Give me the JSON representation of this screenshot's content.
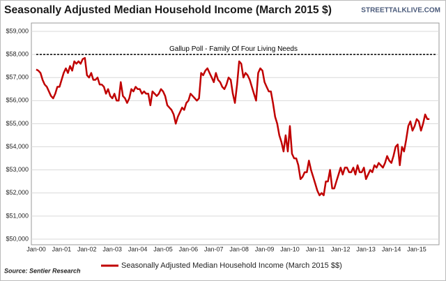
{
  "chart_data": {
    "type": "line",
    "title": "Seasonally Adjusted Median Household Income (March 2015 $)",
    "watermark": "STREETTALKLIVE.COM",
    "source": "Source: Sentier Research",
    "reference_line": {
      "value": 58000,
      "label": "Gallup Poll - Family Of Four Living Needs",
      "color": "#000000"
    },
    "categories": [
      "Jan-00",
      null,
      null,
      null,
      null,
      null,
      null,
      null,
      null,
      null,
      null,
      null,
      "Jan-01",
      null,
      null,
      null,
      null,
      null,
      null,
      null,
      null,
      null,
      null,
      null,
      "Jan-02",
      null,
      null,
      null,
      null,
      null,
      null,
      null,
      null,
      null,
      null,
      null,
      "Jan-03",
      null,
      null,
      null,
      null,
      null,
      null,
      null,
      null,
      null,
      null,
      null,
      "Jan-04",
      null,
      null,
      null,
      null,
      null,
      null,
      null,
      null,
      null,
      null,
      null,
      "Jan-05",
      null,
      null,
      null,
      null,
      null,
      null,
      null,
      null,
      null,
      null,
      null,
      "Jan-06",
      null,
      null,
      null,
      null,
      null,
      null,
      null,
      null,
      null,
      null,
      null,
      "Jan-07",
      null,
      null,
      null,
      null,
      null,
      null,
      null,
      null,
      null,
      null,
      null,
      "Jan-08",
      null,
      null,
      null,
      null,
      null,
      null,
      null,
      null,
      null,
      null,
      null,
      "Jan-09",
      null,
      null,
      null,
      null,
      null,
      null,
      null,
      null,
      null,
      null,
      null,
      "Jan-10",
      null,
      null,
      null,
      null,
      null,
      null,
      null,
      null,
      null,
      null,
      null,
      "Jan-11",
      null,
      null,
      null,
      null,
      null,
      null,
      null,
      null,
      null,
      null,
      null,
      "Jan-12",
      null,
      null,
      null,
      null,
      null,
      null,
      null,
      null,
      null,
      null,
      null,
      "Jan-13",
      null,
      null,
      null,
      null,
      null,
      null,
      null,
      null,
      null,
      null,
      null,
      "Jan-14",
      null,
      null,
      null,
      null,
      null,
      null,
      null,
      null,
      null,
      null,
      null,
      "Jan-15",
      null,
      null,
      null,
      null,
      null,
      null
    ],
    "series": [
      {
        "name": "Seasonally Adjusted Median Household Income (March 2015 $$)",
        "color": "#c00000",
        "values": [
          57350,
          57300,
          57200,
          56900,
          56700,
          56600,
          56400,
          56200,
          56100,
          56300,
          56600,
          56600,
          56900,
          57200,
          57400,
          57200,
          57500,
          57300,
          57700,
          57600,
          57700,
          57600,
          57800,
          57850,
          57100,
          57000,
          57200,
          56900,
          56900,
          57000,
          56700,
          56700,
          56600,
          56300,
          56500,
          56200,
          56100,
          56300,
          56000,
          56000,
          56800,
          56200,
          56100,
          55900,
          56100,
          56500,
          56400,
          56600,
          56500,
          56500,
          56300,
          56400,
          56300,
          56300,
          55800,
          56400,
          56300,
          56200,
          56300,
          56500,
          56400,
          56200,
          55800,
          55700,
          55600,
          55400,
          55000,
          55300,
          55500,
          55700,
          55600,
          55900,
          56000,
          56300,
          56200,
          56100,
          56000,
          56100,
          57200,
          57100,
          57300,
          57400,
          57200,
          57000,
          56800,
          57200,
          56900,
          56800,
          56600,
          56500,
          56700,
          57000,
          56900,
          56300,
          55900,
          56700,
          57700,
          57600,
          57000,
          57200,
          57100,
          56900,
          56600,
          56300,
          56000,
          57200,
          57400,
          57300,
          56800,
          56600,
          56400,
          56400,
          55900,
          55300,
          55000,
          54500,
          54200,
          53800,
          54500,
          53800,
          54900,
          53700,
          53500,
          53500,
          53200,
          52600,
          52700,
          52900,
          52900,
          53400,
          53000,
          52700,
          52400,
          52100,
          51900,
          52000,
          51900,
          52500,
          52500,
          53000,
          52200,
          52200,
          52500,
          52800,
          53100,
          52800,
          53100,
          53100,
          52900,
          52900,
          53100,
          52800,
          53200,
          52900,
          52900,
          53100,
          52600,
          52800,
          53000,
          52900,
          53200,
          53100,
          53300,
          53200,
          53100,
          53300,
          53600,
          53400,
          53300,
          53600,
          54000,
          54100,
          53200,
          54000,
          53800,
          54300,
          54900,
          55100,
          54700,
          54900,
          55200,
          55100,
          54700,
          55000,
          55400,
          55200,
          55200
        ]
      }
    ],
    "ylim": [
      50000,
      59000
    ],
    "yticks": [
      {
        "value": 50000,
        "label": "$50,000"
      },
      {
        "value": 51000,
        "label": "$51,000"
      },
      {
        "value": 52000,
        "label": "$52,000"
      },
      {
        "value": 53000,
        "label": "$53,000"
      },
      {
        "value": 54000,
        "label": "$54,000"
      },
      {
        "value": 55000,
        "label": "$55,000"
      },
      {
        "value": 56000,
        "label": "$56,000"
      },
      {
        "value": 57000,
        "label": "$57,000"
      },
      {
        "value": 58000,
        "label": "$58,000"
      },
      {
        "value": 59000,
        "label": "$59,000"
      }
    ],
    "grid": true
  }
}
